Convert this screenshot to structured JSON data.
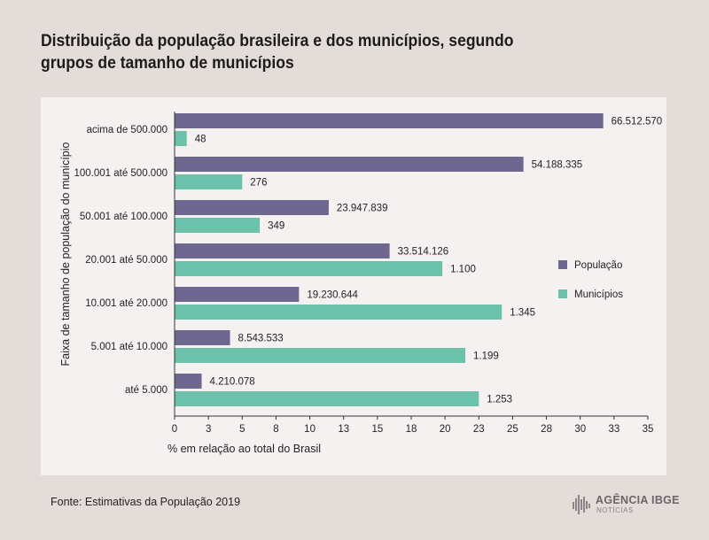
{
  "title": "Distribuição da população brasileira e dos municípios, segundo grupos de tamanho de municípios",
  "source": "Fonte: Estimativas da População 2019",
  "logo": {
    "name": "AGÊNCIA IBGE",
    "sub": "NOTÍCIAS"
  },
  "chart_data": {
    "type": "bar",
    "orientation": "horizontal",
    "xlabel": "% em relação ao total do Brasil",
    "ylabel": "Faixa de tamanho de população do município",
    "xlim": [
      0,
      35
    ],
    "xticks": [
      "0",
      "3",
      "5",
      "8",
      "10",
      "13",
      "15",
      "18",
      "20",
      "23",
      "25",
      "28",
      "30",
      "33",
      "35"
    ],
    "legend_position": "right",
    "categories": [
      "acima de 500.000",
      "100.001 até 500.000",
      "50.001 até 100.000",
      "20.001 até 50.000",
      "10.001 até 20.000",
      "5.001 até 10.000",
      "até 5.000"
    ],
    "series": [
      {
        "name": "População",
        "color": "#6e6890",
        "values": [
          31.7,
          25.8,
          11.4,
          15.9,
          9.2,
          4.1,
          2.0
        ],
        "labels": [
          "66.512.570",
          "54.188.335",
          "23.947.839",
          "33.514.126",
          "19.230.644",
          "8.543.533",
          "4.210.078"
        ]
      },
      {
        "name": "Municípios",
        "color": "#6bc1aa",
        "values": [
          0.9,
          5.0,
          6.3,
          19.8,
          24.2,
          21.5,
          22.5
        ],
        "labels": [
          "48",
          "276",
          "349",
          "1.100",
          "1.345",
          "1.199",
          "1.253"
        ]
      }
    ]
  }
}
